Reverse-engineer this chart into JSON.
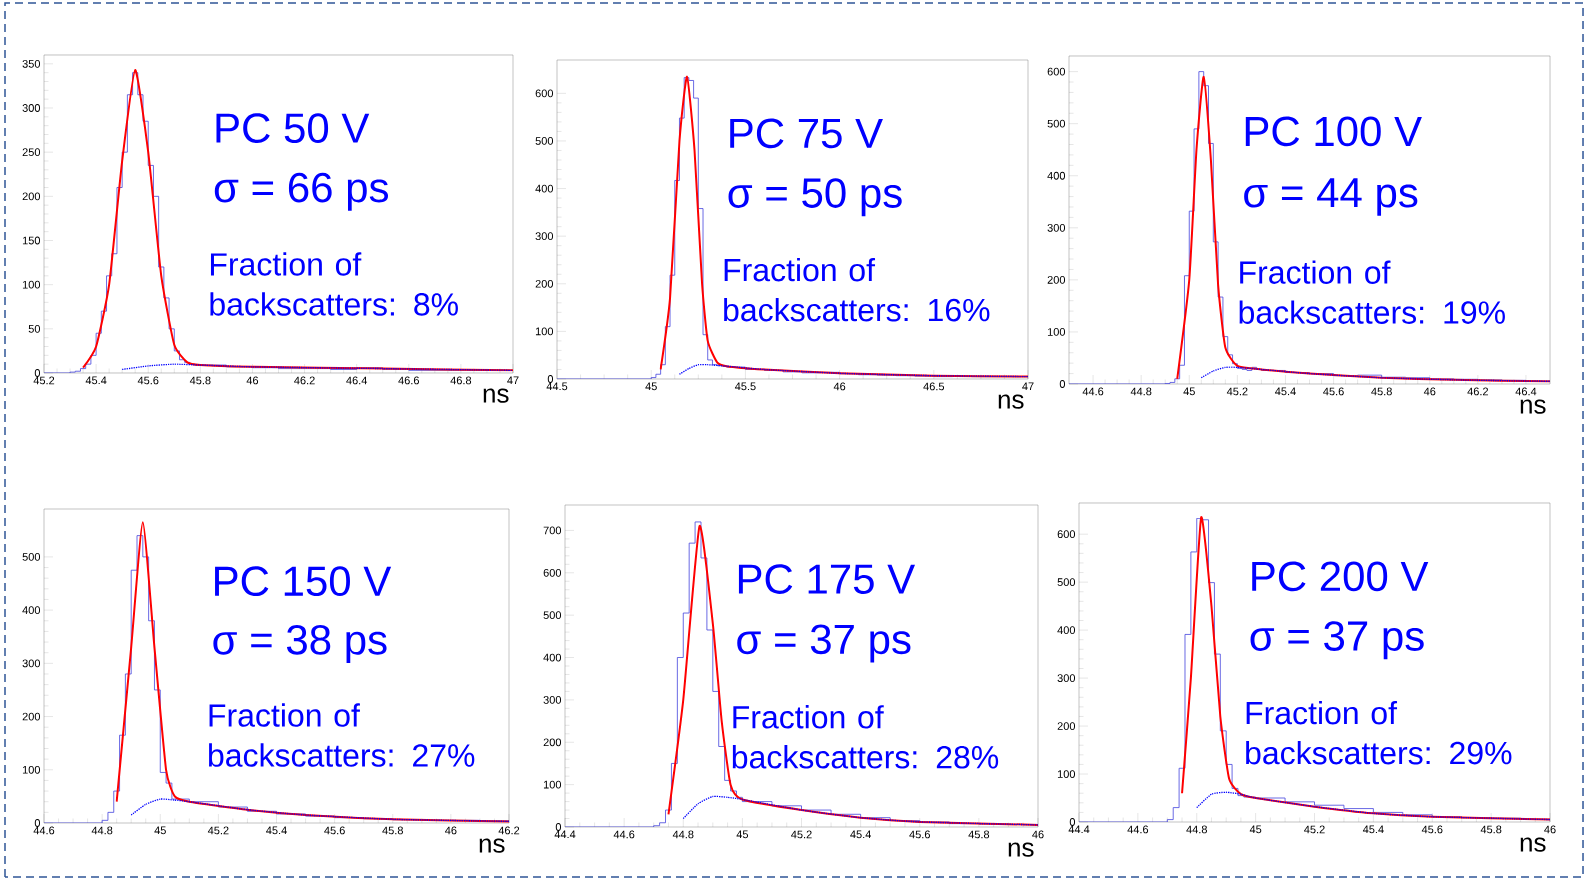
{
  "chart_data": [
    {
      "type": "histogram",
      "xlabel": "ns",
      "annotations": [
        "PC 50 V",
        "σ = 66 ps",
        "Fraction of backscatters: 8%"
      ],
      "xlim": [
        45.2,
        47
      ],
      "ylim": [
        0,
        360
      ],
      "xticks": [
        45.2,
        45.4,
        45.6,
        45.8,
        46,
        46.2,
        46.4,
        46.6,
        46.8,
        47
      ],
      "yticks": [
        0,
        50,
        100,
        150,
        200,
        250,
        300,
        350
      ],
      "series": [
        {
          "type": "histogram",
          "color": "#4444dd",
          "bins": [
            45.2,
            45.3,
            45.32,
            45.34,
            45.36,
            45.38,
            45.4,
            45.42,
            45.44,
            45.46,
            45.48,
            45.5,
            45.52,
            45.54,
            45.56,
            45.58,
            45.6,
            45.62,
            45.64,
            45.66,
            45.68,
            45.7,
            45.72,
            45.74,
            45.76,
            45.78,
            45.8,
            45.9,
            46,
            46.1,
            46.2,
            46.3,
            46.4,
            46.5,
            46.6,
            46.7,
            46.8,
            46.9,
            47
          ],
          "values": [
            0,
            1,
            2,
            5,
            10,
            20,
            45,
            70,
            110,
            135,
            210,
            250,
            315,
            340,
            315,
            285,
            235,
            200,
            120,
            85,
            50,
            25,
            15,
            12,
            10,
            9,
            9,
            7,
            6,
            5,
            5,
            4,
            6,
            4,
            3,
            3,
            3,
            3
          ]
        },
        {
          "type": "line",
          "color": "#ff0000",
          "x": [
            45.35,
            45.4,
            45.45,
            45.5,
            45.55,
            45.6,
            45.65,
            45.7,
            45.75,
            45.8,
            46,
            46.5,
            47
          ],
          "values": [
            6,
            30,
            100,
            240,
            343,
            250,
            110,
            32,
            12,
            9,
            7,
            5,
            3
          ]
        },
        {
          "type": "line",
          "color": "#0000ff",
          "line_style": "dotted",
          "x": [
            45.5,
            45.6,
            45.7,
            45.8,
            46,
            46.5,
            47
          ],
          "values": [
            4,
            8,
            10,
            9,
            7,
            5,
            3
          ]
        }
      ]
    },
    {
      "type": "histogram",
      "xlabel": "ns",
      "annotations": [
        "PC 75 V",
        "σ = 50 ps",
        "Fraction of backscatters: 16%"
      ],
      "xlim": [
        44.5,
        47
      ],
      "ylim": [
        0,
        670
      ],
      "xticks": [
        44.5,
        45,
        45.5,
        46,
        46.5,
        47
      ],
      "yticks": [
        0,
        100,
        200,
        300,
        400,
        500,
        600
      ],
      "series": [
        {
          "type": "histogram",
          "color": "#4444dd",
          "bins": [
            44.5,
            45,
            45.025,
            45.05,
            45.075,
            45.1,
            45.125,
            45.15,
            45.175,
            45.2,
            45.225,
            45.25,
            45.275,
            45.3,
            45.325,
            45.35,
            45.375,
            45.4,
            45.5,
            45.6,
            45.7,
            45.8,
            45.9,
            46,
            46.1,
            46.2,
            46.3,
            46.4,
            46.5,
            46.6,
            46.7,
            46.8,
            46.9,
            47
          ],
          "values": [
            0,
            3,
            10,
            30,
            110,
            218,
            417,
            548,
            633,
            627,
            590,
            358,
            93,
            40,
            30,
            28,
            27,
            25,
            20,
            18,
            15,
            13,
            14,
            11,
            9,
            8,
            7,
            6,
            5,
            6,
            5,
            5,
            5
          ]
        },
        {
          "type": "line",
          "color": "#ff0000",
          "x": [
            45.05,
            45.1,
            45.15,
            45.19,
            45.23,
            45.27,
            45.3,
            45.35,
            45.4,
            45.6,
            46,
            46.5,
            47
          ],
          "values": [
            20,
            170,
            500,
            635,
            480,
            200,
            80,
            35,
            27,
            20,
            12,
            7,
            5
          ]
        },
        {
          "type": "line",
          "color": "#0000ff",
          "line_style": "dotted",
          "x": [
            45.15,
            45.2,
            45.25,
            45.3,
            45.4,
            45.6,
            46,
            46.5,
            47
          ],
          "values": [
            10,
            22,
            30,
            30,
            27,
            20,
            12,
            7,
            5
          ]
        }
      ]
    },
    {
      "type": "histogram",
      "xlabel": "ns",
      "annotations": [
        "PC 100 V",
        "σ = 44 ps",
        "Fraction of backscatters: 19%"
      ],
      "xlim": [
        44.5,
        46.5
      ],
      "ylim": [
        0,
        630
      ],
      "xticks": [
        44.6,
        44.8,
        45,
        45.2,
        45.4,
        45.6,
        45.8,
        46,
        46.2,
        46.4
      ],
      "yticks": [
        0,
        100,
        200,
        300,
        400,
        500,
        600
      ],
      "series": [
        {
          "type": "histogram",
          "color": "#4444dd",
          "bins": [
            44.5,
            44.9,
            44.92,
            44.94,
            44.96,
            44.98,
            45,
            45.02,
            45.04,
            45.06,
            45.08,
            45.1,
            45.12,
            45.14,
            45.16,
            45.18,
            45.2,
            45.22,
            45.24,
            45.26,
            45.28,
            45.3,
            45.4,
            45.5,
            45.6,
            45.7,
            45.8,
            45.9,
            46,
            46.1,
            46.2,
            46.3,
            46.4,
            46.5
          ],
          "values": [
            0,
            1,
            3,
            10,
            36,
            208,
            332,
            490,
            600,
            573,
            462,
            273,
            167,
            91,
            56,
            39,
            30,
            28,
            26,
            32,
            28,
            26,
            22,
            20,
            16,
            17,
            13,
            12,
            10,
            9,
            8,
            7,
            6
          ]
        },
        {
          "type": "line",
          "color": "#ff0000",
          "x": [
            44.95,
            45,
            45.03,
            45.06,
            45.09,
            45.12,
            45.15,
            45.2,
            45.3,
            45.5,
            45.8,
            46.1,
            46.5
          ],
          "values": [
            10,
            200,
            450,
            590,
            430,
            190,
            70,
            35,
            28,
            20,
            12,
            8,
            5
          ]
        },
        {
          "type": "line",
          "color": "#0000ff",
          "line_style": "dotted",
          "x": [
            45.05,
            45.1,
            45.15,
            45.2,
            45.3,
            45.5,
            45.8,
            46.1,
            46.5
          ],
          "values": [
            12,
            25,
            32,
            32,
            28,
            20,
            12,
            8,
            5
          ]
        }
      ]
    },
    {
      "type": "histogram",
      "xlabel": "ns",
      "annotations": [
        "PC 150 V",
        "σ = 38 ps",
        "Fraction of backscatters: 27%"
      ],
      "xlim": [
        44.6,
        46.2
      ],
      "ylim": [
        0,
        590
      ],
      "xticks": [
        44.6,
        44.8,
        45,
        45.2,
        45.4,
        45.6,
        45.8,
        46,
        46.2
      ],
      "yticks": [
        0,
        100,
        200,
        300,
        400,
        500
      ],
      "series": [
        {
          "type": "histogram",
          "color": "#4444dd",
          "bins": [
            44.6,
            44.8,
            44.82,
            44.84,
            44.86,
            44.88,
            44.9,
            44.92,
            44.94,
            44.96,
            44.98,
            45,
            45.02,
            45.04,
            45.06,
            45.08,
            45.1,
            45.2,
            45.3,
            45.4,
            45.5,
            45.6,
            45.7,
            45.8,
            45.9,
            46,
            46.1,
            46.2
          ],
          "values": [
            0,
            5,
            20,
            60,
            165,
            280,
            475,
            540,
            500,
            380,
            250,
            95,
            75,
            45,
            45,
            45,
            40,
            30,
            22,
            17,
            13,
            10,
            8,
            6,
            5,
            5,
            4
          ]
        },
        {
          "type": "line",
          "color": "#ff0000",
          "x": [
            44.85,
            44.9,
            44.94,
            44.98,
            45.02,
            45.05,
            45.1,
            45.3,
            45.5,
            45.8,
            46.2
          ],
          "values": [
            40,
            330,
            565,
            330,
            100,
            50,
            40,
            25,
            15,
            7,
            3
          ]
        },
        {
          "type": "line",
          "color": "#0000ff",
          "line_style": "dotted",
          "x": [
            44.9,
            44.95,
            45,
            45.05,
            45.1,
            45.3,
            45.5,
            45.8,
            46.2
          ],
          "values": [
            15,
            35,
            45,
            43,
            40,
            25,
            15,
            7,
            3
          ]
        }
      ]
    },
    {
      "type": "histogram",
      "xlabel": "ns",
      "annotations": [
        "PC 175 V",
        "σ = 37 ps",
        "Fraction of backscatters: 28%"
      ],
      "xlim": [
        44.4,
        46
      ],
      "ylim": [
        0,
        760
      ],
      "xticks": [
        44.4,
        44.6,
        44.8,
        45,
        45.2,
        45.4,
        45.6,
        45.8,
        46
      ],
      "yticks": [
        0,
        100,
        200,
        300,
        400,
        500,
        600,
        700
      ],
      "series": [
        {
          "type": "histogram",
          "color": "#4444dd",
          "bins": [
            44.4,
            44.7,
            44.72,
            44.74,
            44.76,
            44.78,
            44.8,
            44.82,
            44.84,
            44.86,
            44.88,
            44.9,
            44.92,
            44.94,
            44.96,
            44.98,
            45,
            45.1,
            45.2,
            45.3,
            45.4,
            45.5,
            45.6,
            45.7,
            45.8,
            45.9,
            46
          ],
          "values": [
            0,
            3,
            10,
            40,
            150,
            400,
            505,
            670,
            720,
            635,
            465,
            320,
            190,
            110,
            85,
            70,
            60,
            50,
            40,
            30,
            22,
            15,
            12,
            8,
            7,
            6
          ]
        },
        {
          "type": "line",
          "color": "#ff0000",
          "x": [
            44.75,
            44.8,
            44.855,
            44.9,
            44.93,
            44.96,
            45,
            45.2,
            45.4,
            45.6,
            46
          ],
          "values": [
            30,
            300,
            710,
            480,
            250,
            100,
            65,
            40,
            22,
            12,
            5
          ]
        },
        {
          "type": "line",
          "color": "#0000ff",
          "line_style": "dotted",
          "x": [
            44.8,
            44.85,
            44.9,
            44.95,
            45,
            45.2,
            45.4,
            45.6,
            46
          ],
          "values": [
            20,
            55,
            72,
            70,
            65,
            40,
            22,
            12,
            5
          ]
        }
      ]
    },
    {
      "type": "histogram",
      "xlabel": "ns",
      "annotations": [
        "PC 200 V",
        "σ = 37 ps",
        "Fraction of backscatters: 29%"
      ],
      "xlim": [
        44.4,
        46
      ],
      "ylim": [
        0,
        665
      ],
      "xticks": [
        44.4,
        44.6,
        44.8,
        45,
        45.2,
        45.4,
        45.6,
        45.8,
        46
      ],
      "yticks": [
        0,
        100,
        200,
        300,
        400,
        500,
        600
      ],
      "series": [
        {
          "type": "histogram",
          "color": "#4444dd",
          "bins": [
            44.4,
            44.7,
            44.72,
            44.74,
            44.76,
            44.78,
            44.8,
            44.82,
            44.84,
            44.86,
            44.88,
            44.9,
            44.92,
            44.94,
            44.96,
            44.98,
            45,
            45.1,
            45.2,
            45.3,
            45.4,
            45.5,
            45.6,
            45.7,
            45.8,
            45.9,
            46
          ],
          "values": [
            0,
            5,
            30,
            112,
            391,
            563,
            633,
            630,
            499,
            350,
            190,
            120,
            70,
            55,
            52,
            52,
            50,
            42,
            35,
            28,
            20,
            15,
            11,
            9,
            8,
            6
          ]
        },
        {
          "type": "line",
          "color": "#ff0000",
          "x": [
            44.75,
            44.78,
            44.815,
            44.85,
            44.88,
            44.91,
            44.95,
            45,
            45.2,
            45.4,
            45.6,
            46
          ],
          "values": [
            60,
            300,
            635,
            450,
            220,
            90,
            58,
            50,
            32,
            18,
            11,
            5
          ]
        },
        {
          "type": "line",
          "color": "#0000ff",
          "line_style": "dotted",
          "x": [
            44.8,
            44.85,
            44.9,
            44.95,
            45,
            45.2,
            45.4,
            45.6,
            46
          ],
          "values": [
            30,
            58,
            62,
            58,
            50,
            32,
            18,
            11,
            5
          ]
        }
      ]
    }
  ]
}
